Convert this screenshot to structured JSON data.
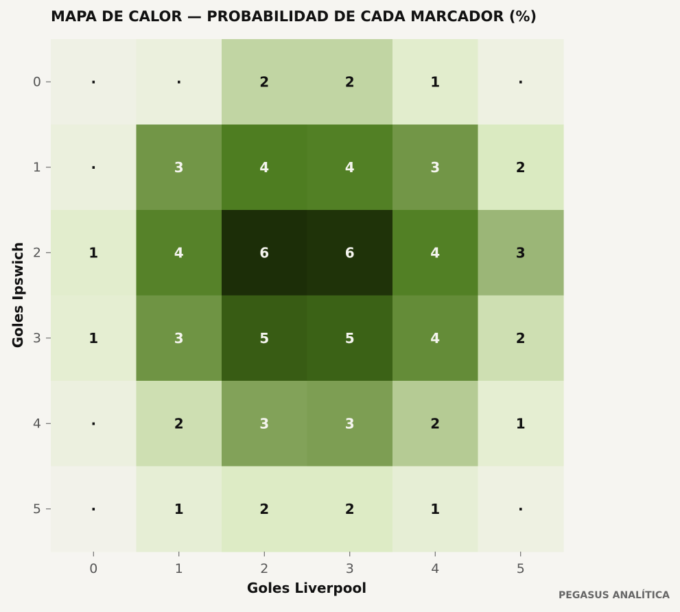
{
  "chart_data": {
    "type": "heatmap",
    "title": "MAPA DE CALOR — PROBABILIDAD DE CADA MARCADOR (%)",
    "xlabel": "Goles Liverpool",
    "ylabel": "Goles Ipswich",
    "x_categories": [
      "0",
      "1",
      "2",
      "3",
      "4",
      "5"
    ],
    "y_categories": [
      "0",
      "1",
      "2",
      "3",
      "4",
      "5"
    ],
    "values": [
      [
        0.3,
        0.6,
        2.0,
        2.0,
        1.2,
        0.4
      ],
      [
        0.6,
        3.4,
        4.4,
        4.3,
        3.4,
        1.6
      ],
      [
        1.2,
        4.2,
        6.0,
        5.9,
        4.3,
        2.6
      ],
      [
        1.0,
        3.5,
        5.1,
        5.0,
        3.8,
        1.8
      ],
      [
        0.5,
        1.8,
        3.0,
        3.1,
        2.2,
        1.0
      ],
      [
        0.1,
        0.9,
        1.5,
        1.5,
        0.9,
        0.4
      ]
    ],
    "cell_labels": [
      [
        "·",
        "·",
        "2",
        "2",
        "1",
        "·"
      ],
      [
        "·",
        "3",
        "4",
        "4",
        "3",
        "2"
      ],
      [
        "1",
        "4",
        "6",
        "6",
        "4",
        "3"
      ],
      [
        "1",
        "3",
        "5",
        "5",
        "4",
        "2"
      ],
      [
        "·",
        "2",
        "3",
        "3",
        "2",
        "1"
      ],
      [
        "·",
        "1",
        "2",
        "2",
        "1",
        "·"
      ]
    ],
    "color_scale": [
      "#f2f2ea",
      "#dcebc3",
      "#7f9f55",
      "#4a7a1c",
      "#1c2e08"
    ],
    "grid": false
  },
  "watermark": "PEGASUS ANALÍTICA"
}
